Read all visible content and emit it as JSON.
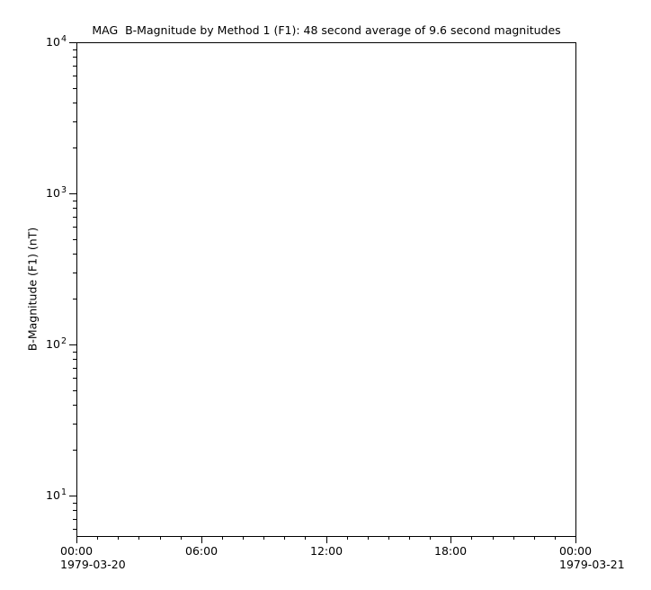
{
  "chart_data": {
    "type": "line",
    "title": "MAG  B-Magnitude by Method 1 (F1): 48 second average of 9.6 second magnitudes",
    "xlabel": "",
    "ylabel": "B-Magnitude (F1) (nT)",
    "grid": false,
    "legend": "none",
    "series": [],
    "no_data_plotted": true,
    "x_axis": {
      "scale": "time-hours",
      "range_hours": [
        0,
        24
      ],
      "start_date": "1979-03-20",
      "end_date": "1979-03-21",
      "minor_tick_step_hours": 1,
      "major_tick_step_hours": 6,
      "major_ticks": [
        {
          "hour": 0,
          "label": "00:00",
          "date": "1979-03-20"
        },
        {
          "hour": 6,
          "label": "06:00"
        },
        {
          "hour": 12,
          "label": "12:00"
        },
        {
          "hour": 18,
          "label": "18:00"
        },
        {
          "hour": 24,
          "label": "00:00",
          "date": "1979-03-21"
        }
      ]
    },
    "y_axis": {
      "scale": "log",
      "range": [
        5.4,
        10000
      ],
      "major_ticks": [
        {
          "value": 10,
          "label_base": "10",
          "label_exp": "1"
        },
        {
          "value": 100,
          "label_base": "10",
          "label_exp": "2"
        },
        {
          "value": 1000,
          "label_base": "10",
          "label_exp": "3"
        },
        {
          "value": 10000,
          "label_base": "10",
          "label_exp": "4"
        }
      ],
      "log_minor_mantissas": [
        2,
        3,
        4,
        5,
        6,
        7,
        8,
        9
      ]
    },
    "colors": {
      "background": "#ffffff",
      "frame": "#000000",
      "text": "#000000"
    }
  }
}
